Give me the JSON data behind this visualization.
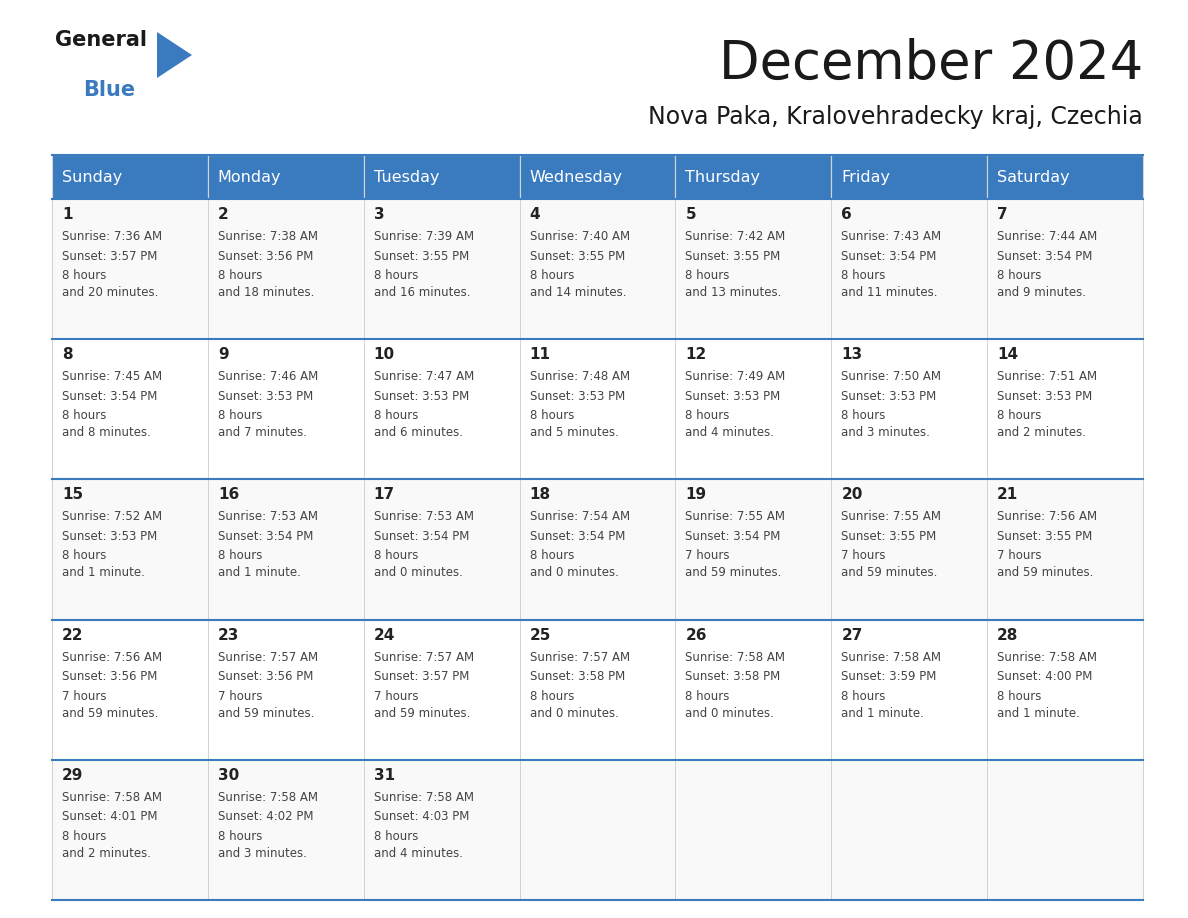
{
  "title": "December 2024",
  "subtitle": "Nova Paka, Kralovehradecky kraj, Czechia",
  "header_color": "#3a7bbf",
  "header_text_color": "#ffffff",
  "cell_bg_even": "#f9f9f9",
  "cell_bg_odd": "#ffffff",
  "border_color": "#3a7bbf",
  "text_color": "#444444",
  "day_num_color": "#222222",
  "days_of_week": [
    "Sunday",
    "Monday",
    "Tuesday",
    "Wednesday",
    "Thursday",
    "Friday",
    "Saturday"
  ],
  "weeks": [
    [
      {
        "day": 1,
        "sunrise": "7:36 AM",
        "sunset": "3:57 PM",
        "daylight": "8 hours\nand 20 minutes."
      },
      {
        "day": 2,
        "sunrise": "7:38 AM",
        "sunset": "3:56 PM",
        "daylight": "8 hours\nand 18 minutes."
      },
      {
        "day": 3,
        "sunrise": "7:39 AM",
        "sunset": "3:55 PM",
        "daylight": "8 hours\nand 16 minutes."
      },
      {
        "day": 4,
        "sunrise": "7:40 AM",
        "sunset": "3:55 PM",
        "daylight": "8 hours\nand 14 minutes."
      },
      {
        "day": 5,
        "sunrise": "7:42 AM",
        "sunset": "3:55 PM",
        "daylight": "8 hours\nand 13 minutes."
      },
      {
        "day": 6,
        "sunrise": "7:43 AM",
        "sunset": "3:54 PM",
        "daylight": "8 hours\nand 11 minutes."
      },
      {
        "day": 7,
        "sunrise": "7:44 AM",
        "sunset": "3:54 PM",
        "daylight": "8 hours\nand 9 minutes."
      }
    ],
    [
      {
        "day": 8,
        "sunrise": "7:45 AM",
        "sunset": "3:54 PM",
        "daylight": "8 hours\nand 8 minutes."
      },
      {
        "day": 9,
        "sunrise": "7:46 AM",
        "sunset": "3:53 PM",
        "daylight": "8 hours\nand 7 minutes."
      },
      {
        "day": 10,
        "sunrise": "7:47 AM",
        "sunset": "3:53 PM",
        "daylight": "8 hours\nand 6 minutes."
      },
      {
        "day": 11,
        "sunrise": "7:48 AM",
        "sunset": "3:53 PM",
        "daylight": "8 hours\nand 5 minutes."
      },
      {
        "day": 12,
        "sunrise": "7:49 AM",
        "sunset": "3:53 PM",
        "daylight": "8 hours\nand 4 minutes."
      },
      {
        "day": 13,
        "sunrise": "7:50 AM",
        "sunset": "3:53 PM",
        "daylight": "8 hours\nand 3 minutes."
      },
      {
        "day": 14,
        "sunrise": "7:51 AM",
        "sunset": "3:53 PM",
        "daylight": "8 hours\nand 2 minutes."
      }
    ],
    [
      {
        "day": 15,
        "sunrise": "7:52 AM",
        "sunset": "3:53 PM",
        "daylight": "8 hours\nand 1 minute."
      },
      {
        "day": 16,
        "sunrise": "7:53 AM",
        "sunset": "3:54 PM",
        "daylight": "8 hours\nand 1 minute."
      },
      {
        "day": 17,
        "sunrise": "7:53 AM",
        "sunset": "3:54 PM",
        "daylight": "8 hours\nand 0 minutes."
      },
      {
        "day": 18,
        "sunrise": "7:54 AM",
        "sunset": "3:54 PM",
        "daylight": "8 hours\nand 0 minutes."
      },
      {
        "day": 19,
        "sunrise": "7:55 AM",
        "sunset": "3:54 PM",
        "daylight": "7 hours\nand 59 minutes."
      },
      {
        "day": 20,
        "sunrise": "7:55 AM",
        "sunset": "3:55 PM",
        "daylight": "7 hours\nand 59 minutes."
      },
      {
        "day": 21,
        "sunrise": "7:56 AM",
        "sunset": "3:55 PM",
        "daylight": "7 hours\nand 59 minutes."
      }
    ],
    [
      {
        "day": 22,
        "sunrise": "7:56 AM",
        "sunset": "3:56 PM",
        "daylight": "7 hours\nand 59 minutes."
      },
      {
        "day": 23,
        "sunrise": "7:57 AM",
        "sunset": "3:56 PM",
        "daylight": "7 hours\nand 59 minutes."
      },
      {
        "day": 24,
        "sunrise": "7:57 AM",
        "sunset": "3:57 PM",
        "daylight": "7 hours\nand 59 minutes."
      },
      {
        "day": 25,
        "sunrise": "7:57 AM",
        "sunset": "3:58 PM",
        "daylight": "8 hours\nand 0 minutes."
      },
      {
        "day": 26,
        "sunrise": "7:58 AM",
        "sunset": "3:58 PM",
        "daylight": "8 hours\nand 0 minutes."
      },
      {
        "day": 27,
        "sunrise": "7:58 AM",
        "sunset": "3:59 PM",
        "daylight": "8 hours\nand 1 minute."
      },
      {
        "day": 28,
        "sunrise": "7:58 AM",
        "sunset": "4:00 PM",
        "daylight": "8 hours\nand 1 minute."
      }
    ],
    [
      {
        "day": 29,
        "sunrise": "7:58 AM",
        "sunset": "4:01 PM",
        "daylight": "8 hours\nand 2 minutes."
      },
      {
        "day": 30,
        "sunrise": "7:58 AM",
        "sunset": "4:02 PM",
        "daylight": "8 hours\nand 3 minutes."
      },
      {
        "day": 31,
        "sunrise": "7:58 AM",
        "sunset": "4:03 PM",
        "daylight": "8 hours\nand 4 minutes."
      },
      null,
      null,
      null,
      null
    ]
  ]
}
